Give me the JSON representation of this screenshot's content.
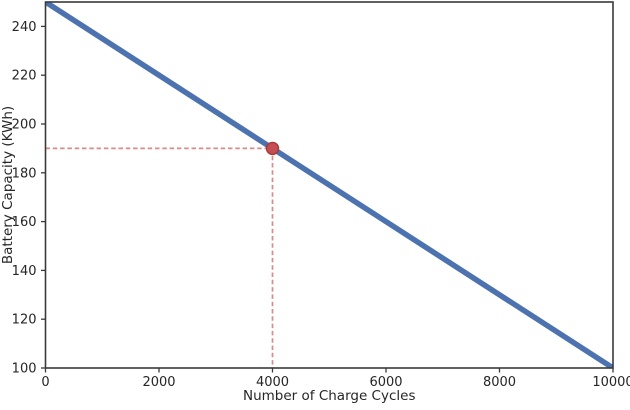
{
  "chart_data": {
    "type": "line",
    "title": "",
    "xlabel": "Number of Charge Cycles",
    "ylabel": "Battery Capacity (KWh)",
    "xlim": [
      0,
      10000
    ],
    "ylim": [
      100,
      250
    ],
    "xticks": [
      "0",
      "2000",
      "4000",
      "6000",
      "8000",
      "10000"
    ],
    "xtick_values": [
      0,
      2000,
      4000,
      6000,
      8000,
      10000
    ],
    "yticks": [
      "100",
      "120",
      "140",
      "160",
      "180",
      "200",
      "220",
      "240"
    ],
    "ytick_values": [
      100,
      120,
      140,
      160,
      180,
      200,
      220,
      240
    ],
    "grid": false,
    "legend": null,
    "series": [
      {
        "name": "Battery Capacity",
        "x": [
          0,
          10000
        ],
        "y": [
          250,
          100
        ],
        "color": "#4C72B0",
        "linewidth": 5.5
      }
    ],
    "highlight": {
      "x": 4000,
      "y": 190,
      "marker": "circle",
      "marker_color": "#C44E52",
      "marker_edge_color": "#A6383E",
      "guide_color": "#D98A8A",
      "guide_style": "dashed"
    }
  },
  "style": {
    "background": "#FFFFFF",
    "spine_color": "#3A3A3A",
    "tick_color": "#3A3A3A",
    "text_color": "#262626"
  }
}
